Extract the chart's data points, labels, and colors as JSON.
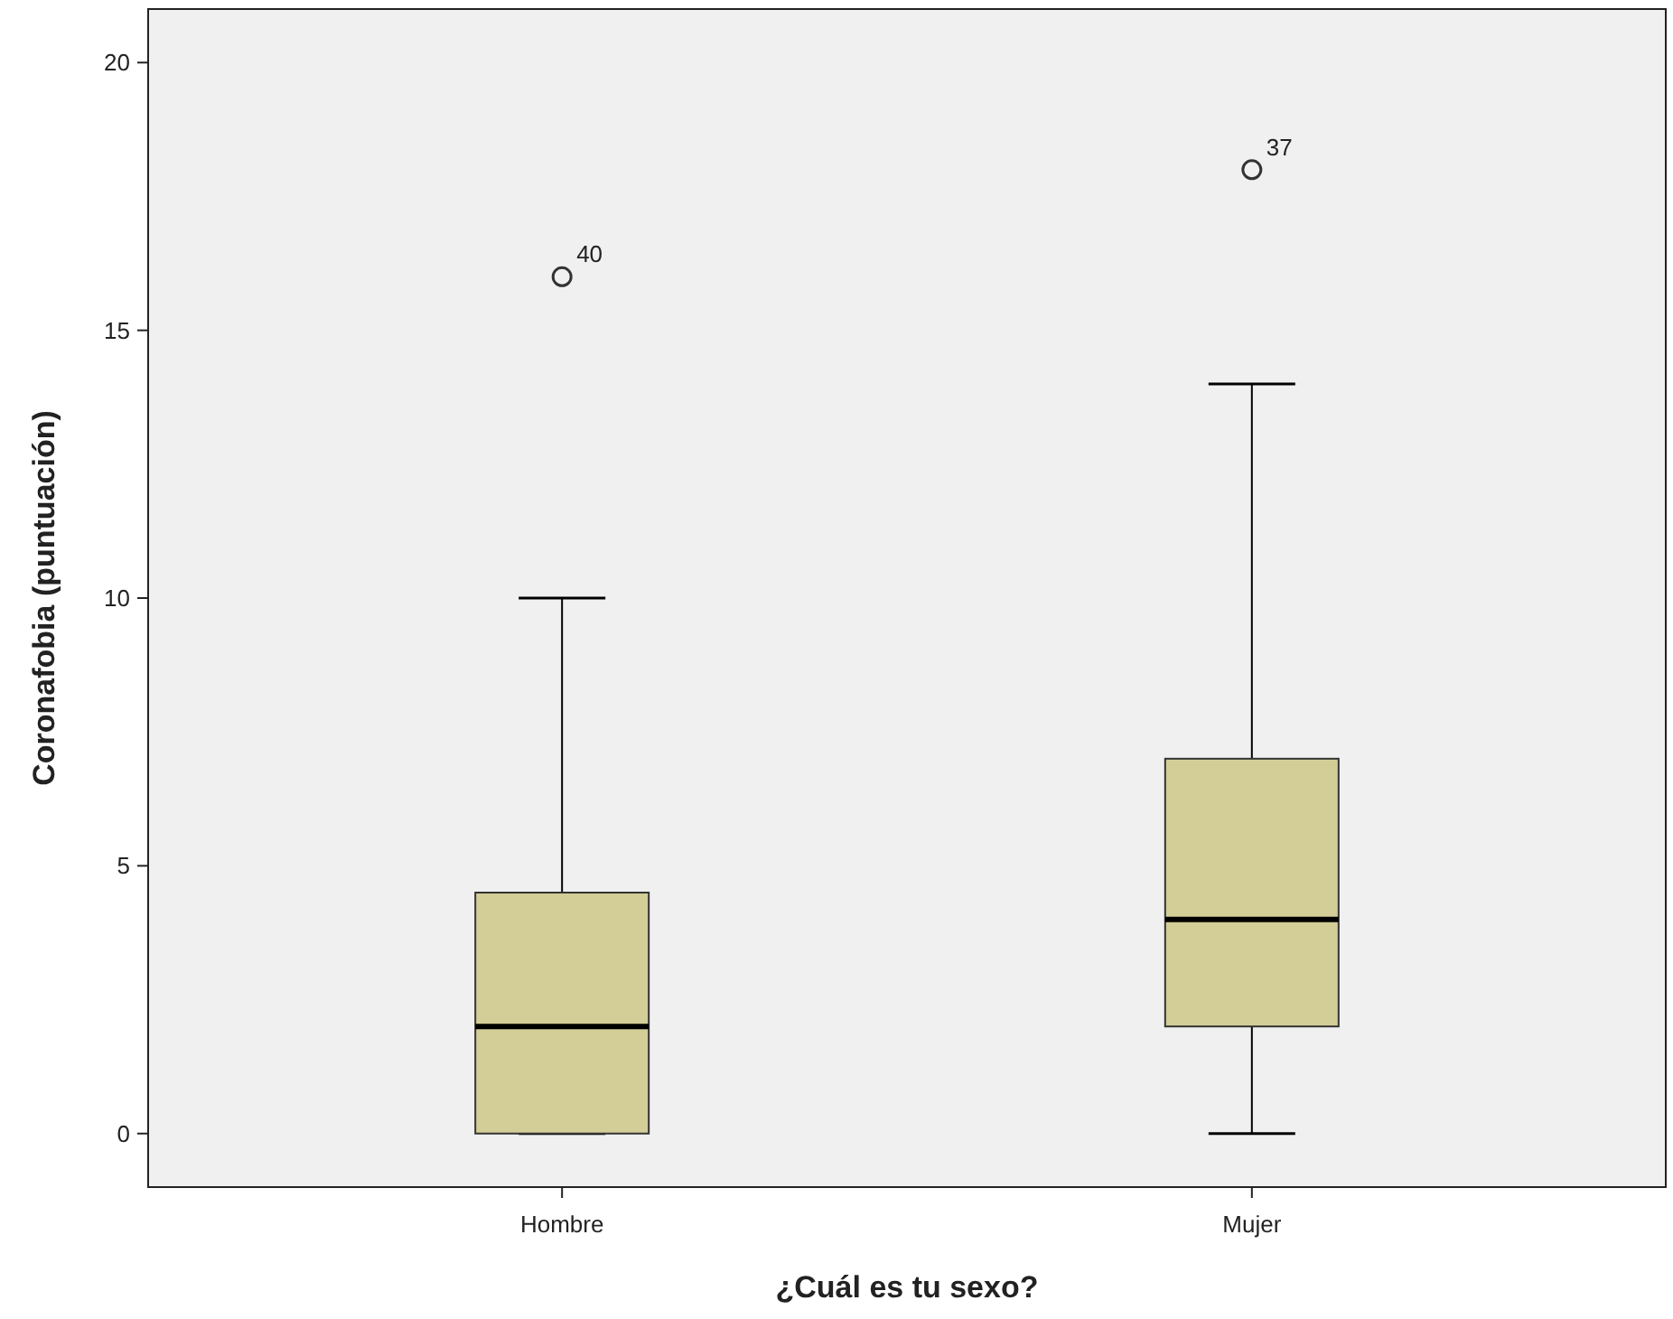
{
  "chart_data": {
    "type": "box",
    "xlabel": "¿Cuál es tu sexo?",
    "ylabel": "Coronafobia (puntuación)",
    "categories": [
      "Hombre",
      "Mujer"
    ],
    "color": "#d3ce97",
    "boxes": [
      {
        "low": 0,
        "q1": 0,
        "median": 2,
        "q3": 4.5,
        "high": 10,
        "outliers": [
          16
        ]
      },
      {
        "low": 0,
        "q1": 2,
        "median": 4,
        "q3": 7,
        "high": 14,
        "outliers": [
          18
        ]
      }
    ],
    "ylim": [
      -1,
      21
    ],
    "yticks": [
      0,
      5,
      10,
      15,
      20
    ],
    "grid": false,
    "annotations": [
      "40",
      "37"
    ]
  }
}
